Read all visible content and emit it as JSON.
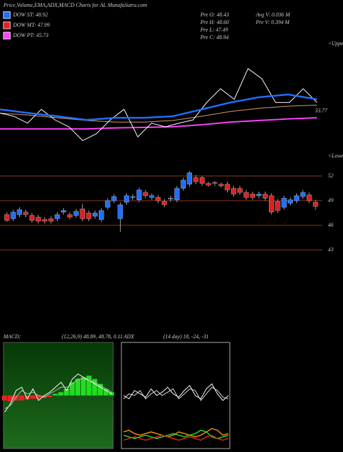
{
  "title": "Price,Volume,EMA,ADX,MACD Charts for AL MunafaSutra.com",
  "legend": [
    {
      "label": "DOW ST: 48.92",
      "color": "#1f6fff"
    },
    {
      "label": "DOW MT: 47.99",
      "color": "#e02020"
    },
    {
      "label": "DOW PT: 45.73",
      "color": "#ff40ff"
    }
  ],
  "info": [
    "Pre  O: 48.43",
    "Pre  H: 48.60",
    "Pre  L: 47.49",
    "Pre  C: 48.94"
  ],
  "volume": [
    "Avg V: 0.036  M",
    "Pre  V: 0.394  M"
  ],
  "chart_data": [
    {
      "type": "line",
      "ylim": [
        38,
        60
      ],
      "annotations": [
        "33.77",
        "<Upper",
        "<Lower"
      ],
      "series": [
        {
          "color": "#d9a066",
          "values": [
            46.4,
            46.0,
            45.5,
            45.0,
            44.7,
            44.7,
            45.0,
            45.8,
            46.7,
            47.3,
            47.7,
            47.9
          ]
        },
        {
          "color": "#ff40ff",
          "values": [
            43.4,
            43.4,
            43.4,
            43.4,
            43.6,
            43.7,
            43.8,
            44.2,
            44.7,
            45.0,
            45.3,
            45.5
          ]
        },
        {
          "color": "#ffffff",
          "values": [
            46.4,
            45.8,
            44.5,
            47.1,
            45.1,
            43.8,
            41.2,
            42.5,
            45.1,
            47.1,
            41.9,
            44.5,
            43.8,
            44.5,
            45.1,
            48.4,
            51.0,
            49.0,
            54.8,
            52.9,
            48.4,
            48.4,
            51.0,
            48.4
          ]
        },
        {
          "color": "#1f6fff",
          "values": [
            47.1,
            46.4,
            45.8,
            45.1,
            45.5,
            45.5,
            45.8,
            47.1,
            48.4,
            49.4,
            49.9,
            49.0
          ]
        }
      ]
    },
    {
      "type": "candlestick",
      "ylim": [
        42,
        53
      ],
      "yticks": [
        43,
        46,
        49,
        52
      ],
      "up_color": "#1f6fff",
      "down_color": "#e02020",
      "grid": true,
      "open": [
        47.3,
        46.8,
        47.3,
        47.6,
        47.2,
        47.0,
        46.7,
        46.8,
        46.8,
        47.6,
        47.3,
        47.2,
        48.0,
        47.5,
        47.1,
        46.7,
        48.2,
        49.0,
        46.8,
        48.8,
        49.4,
        49.1,
        50.0,
        49.4,
        49.4,
        48.9,
        49.2,
        49.1,
        50.5,
        51.0,
        51.8,
        51.8,
        51.1,
        51.2,
        51.0,
        51.0,
        50.5,
        50.5,
        50.0,
        49.8,
        49.6,
        49.8,
        49.6,
        48.9,
        48.2,
        48.7,
        49.0,
        49.5,
        49.7,
        48.8
      ],
      "high": [
        47.6,
        47.9,
        48.2,
        47.9,
        47.5,
        47.3,
        47.0,
        47.1,
        47.6,
        48.1,
        47.6,
        48.0,
        48.6,
        47.8,
        47.8,
        48.1,
        49.3,
        49.8,
        48.8,
        49.9,
        49.8,
        50.6,
        50.3,
        49.9,
        49.7,
        49.2,
        49.6,
        50.8,
        51.8,
        52.6,
        52.1,
        52.0,
        51.3,
        51.4,
        51.2,
        51.3,
        50.8,
        50.8,
        50.3,
        50.1,
        50.1,
        50.1,
        49.9,
        49.2,
        49.6,
        49.4,
        49.9,
        50.3,
        50.0,
        49.1
      ],
      "low": [
        46.4,
        46.5,
        47.0,
        47.0,
        46.3,
        46.2,
        46.2,
        46.2,
        46.5,
        47.3,
        46.7,
        46.9,
        46.5,
        46.5,
        46.8,
        46.4,
        47.9,
        48.7,
        45.2,
        48.5,
        49.1,
        48.8,
        49.3,
        49.1,
        48.7,
        48.2,
        48.9,
        48.8,
        50.2,
        50.7,
        51.0,
        50.8,
        50.7,
        50.8,
        50.6,
        50.0,
        49.5,
        49.7,
        49.1,
        49.1,
        49.3,
        49.0,
        47.3,
        47.5,
        47.9,
        48.4,
        48.7,
        49.2,
        48.7,
        47.9
      ],
      "close": [
        46.6,
        47.6,
        47.9,
        47.3,
        46.6,
        46.5,
        46.5,
        46.5,
        47.3,
        47.8,
        47.0,
        47.7,
        46.8,
        46.8,
        47.5,
        47.8,
        49.0,
        49.5,
        48.5,
        49.6,
        49.5,
        50.3,
        49.6,
        49.6,
        49.0,
        48.5,
        49.3,
        50.5,
        51.5,
        52.4,
        51.3,
        51.1,
        50.9,
        51.1,
        50.8,
        50.3,
        49.8,
        50.0,
        49.4,
        49.4,
        49.8,
        49.3,
        47.6,
        47.8,
        49.3,
        49.1,
        49.6,
        50.0,
        49.0,
        48.3
      ]
    },
    {
      "type": "macd",
      "title": "MACD:",
      "subtitle": "(12,26,9) 48.89, 48.78, 0.11",
      "ylim": [
        -3,
        3
      ],
      "histogram": {
        "up_color": "#22dd22",
        "down_color": "#ee2222",
        "values": [
          -0.3,
          -0.35,
          -0.3,
          -0.3,
          -0.25,
          -0.2,
          -0.2,
          -0.15,
          -0.1,
          0.1,
          0.2,
          0.4,
          0.8,
          1.0,
          1.1,
          1.2,
          1.0,
          0.7,
          0.4,
          0.2
        ]
      },
      "series": [
        {
          "color": "#ffffff",
          "values": [
            -1.0,
            -0.5,
            0.3,
            0.5,
            -0.2,
            0.4,
            -0.3,
            0.0,
            0.2,
            0.5,
            0.8,
            0.3,
            1.0,
            1.3,
            1.1,
            0.9,
            0.7,
            0.5,
            0.3,
            0.1
          ]
        },
        {
          "color": "#bbbbbb",
          "values": [
            -0.8,
            -0.6,
            -0.1,
            0.3,
            0.1,
            0.2,
            0.0,
            -0.1,
            0.1,
            0.3,
            0.5,
            0.5,
            0.7,
            1.0,
            1.0,
            0.9,
            0.8,
            0.6,
            0.4,
            0.2
          ]
        }
      ]
    },
    {
      "type": "adx",
      "title": "ADX",
      "subtitle": "(14 day) 18, -24, -31",
      "ylim": [
        0,
        60
      ],
      "series": [
        {
          "color": "#ffffff",
          "values": [
            30,
            28,
            33,
            31,
            29,
            34,
            30,
            32,
            35,
            31,
            29,
            33,
            36,
            30,
            28,
            34,
            37,
            31,
            27,
            30
          ]
        },
        {
          "color": "#dddddd",
          "values": [
            28,
            31,
            30,
            33,
            28,
            31,
            33,
            30,
            32,
            34,
            28,
            31,
            34,
            33,
            27,
            31,
            35,
            33,
            29,
            28
          ]
        },
        {
          "color": "#ff9900",
          "values": [
            8,
            9,
            7,
            6,
            7,
            8,
            7,
            6,
            5,
            6,
            8,
            7,
            6,
            5,
            6,
            8,
            10,
            9,
            6,
            7
          ]
        },
        {
          "color": "#22ee22",
          "values": [
            6,
            5,
            4,
            5,
            6,
            5,
            4,
            5,
            6,
            7,
            6,
            5,
            6,
            7,
            9,
            8,
            5,
            4,
            5,
            6
          ]
        },
        {
          "color": "#ee2222",
          "values": [
            3,
            4,
            5,
            4,
            3,
            4,
            5,
            6,
            5,
            4,
            3,
            4,
            5,
            4,
            3,
            5,
            6,
            4,
            3,
            4
          ]
        }
      ]
    }
  ]
}
